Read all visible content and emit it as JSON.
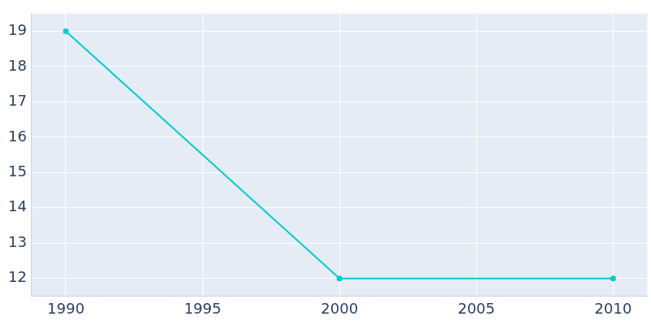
{
  "chart_data": {
    "type": "line",
    "x": [
      1990,
      2000,
      2010
    ],
    "values": [
      19,
      12,
      12
    ],
    "color": "#00cccc",
    "marker": "circle",
    "xlim": [
      1988.75,
      2011.25
    ],
    "xticks": [
      1990,
      1995,
      2000,
      2005,
      2010
    ],
    "ylim": [
      11.5,
      19.5
    ],
    "yticks": [
      12,
      13,
      14,
      15,
      16,
      17,
      18,
      19
    ],
    "grid": true
  }
}
